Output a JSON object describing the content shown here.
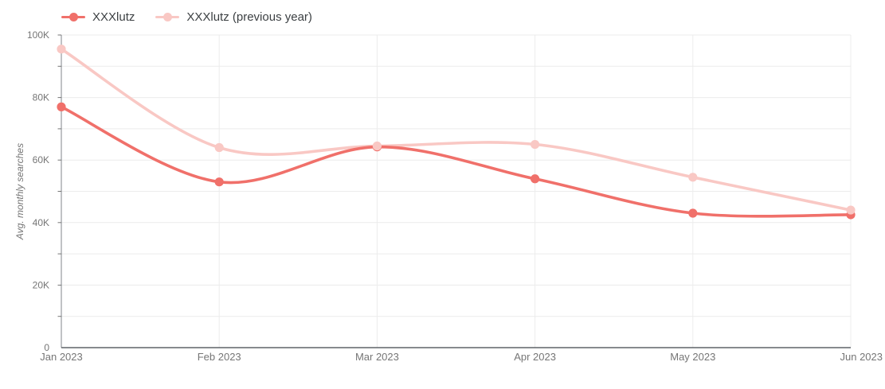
{
  "chart_data": {
    "type": "line",
    "title": "",
    "xlabel": "",
    "ylabel": "Avg. monthly searches",
    "categories": [
      "Jan 2023",
      "Feb 2023",
      "Mar 2023",
      "Apr 2023",
      "May 2023",
      "Jun 2023"
    ],
    "series": [
      {
        "name": "XXXlutz",
        "color": "#f0706a",
        "values": [
          77000,
          53000,
          64200,
          54000,
          43000,
          42500
        ]
      },
      {
        "name": "XXXlutz (previous year)",
        "color": "#f9c8c4",
        "values": [
          95500,
          64000,
          64500,
          65000,
          54500,
          44000
        ]
      }
    ],
    "ylim": [
      0,
      100000
    ],
    "y_gridline_step": 10000,
    "y_label_step": 20000,
    "y_tick_labels": [
      "0",
      "20K",
      "40K",
      "60K",
      "80K",
      "100K"
    ],
    "grid": true,
    "smooth": true,
    "legend_position": "top-left"
  },
  "colors": {
    "background": "#ffffff",
    "gridline": "#ececec",
    "y_axis_line": "#80868b",
    "x_axis_line": "#5f6368",
    "tick_label": "#757575",
    "legend_text": "#3c4043"
  }
}
